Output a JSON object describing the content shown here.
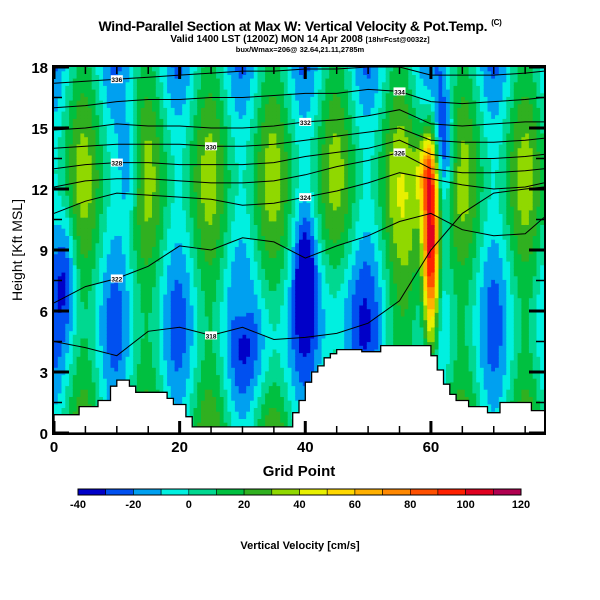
{
  "header": {
    "title": "Wind-Parallel Section at Max W: Vertical Velocity & Pot.Temp.",
    "copyright": "(C)",
    "valid_main": "Valid 1400 LST (1200Z) MON 14 Apr 2008",
    "valid_sub": "[18hrFcst@0032z]",
    "location": "bux/Wmax=206@ 32.64,21.11,2785m"
  },
  "chart_data": {
    "type": "heatmap",
    "title": "Wind-Parallel Section at Max W: Vertical Velocity & Pot.Temp.",
    "xlabel": "Grid Point",
    "ylabel": "Height [Kft MSL]",
    "xlim": [
      0,
      78
    ],
    "ylim": [
      0,
      18
    ],
    "x_ticks": [
      0,
      20,
      40,
      60
    ],
    "y_ticks": [
      0,
      3,
      6,
      9,
      12,
      15,
      18
    ],
    "x_minor_step": 5,
    "y_minor_step": 1.5,
    "colorbar": {
      "label": "Vertical Velocity [cm/s]",
      "ticks": [
        -40,
        -20,
        0,
        20,
        40,
        60,
        80,
        100,
        120
      ],
      "levels": [
        -40,
        -30,
        -20,
        -10,
        0,
        10,
        20,
        30,
        40,
        50,
        60,
        70,
        80,
        90,
        100,
        110,
        120
      ],
      "colors": [
        "#0000c8",
        "#0050f0",
        "#00a0f0",
        "#00f0e0",
        "#00d890",
        "#00c040",
        "#30b020",
        "#90d800",
        "#e8f000",
        "#ffd800",
        "#ffb000",
        "#ff8800",
        "#ff5000",
        "#ff2000",
        "#e00020",
        "#b00050"
      ]
    },
    "background_value": 5,
    "max_w": 206,
    "max_w_location": {
      "grid_point": 60,
      "height_kft": 9.1
    },
    "updraft_core": {
      "grid_point": 60,
      "height_range_kft": [
        4.5,
        14
      ],
      "peak": 110
    },
    "downdraft_features": [
      {
        "grid_point": 62,
        "height_kft": 14,
        "value": -30
      },
      {
        "grid_point": 40,
        "height_kft": 8,
        "value": -20
      },
      {
        "grid_point": 12,
        "height_kft": 13,
        "value": -15
      },
      {
        "grid_point": 2,
        "height_kft": 8,
        "value": -15
      }
    ],
    "terrain_kft": [
      0.9,
      0.9,
      0.9,
      0.9,
      1.3,
      1.3,
      1.3,
      1.6,
      1.6,
      2.3,
      2.6,
      2.6,
      2.3,
      2.0,
      2.0,
      2.0,
      2.0,
      2.0,
      1.7,
      1.4,
      1.4,
      0.8,
      0.3,
      0.3,
      0.3,
      0.3,
      0.3,
      0.3,
      0.3,
      0.3,
      0.3,
      0.3,
      0.3,
      0.3,
      0.3,
      0.3,
      0.3,
      0.3,
      1.0,
      1.6,
      2.5,
      3.0,
      3.3,
      3.7,
      3.9,
      4.1,
      4.1,
      4.1,
      4.1,
      4.0,
      4.0,
      4.0,
      4.3,
      4.3,
      4.3,
      4.3,
      4.3,
      4.3,
      4.3,
      4.3,
      3.8,
      3.1,
      2.4,
      1.9,
      1.6,
      1.6,
      1.3,
      1.3,
      1.3,
      1.0,
      1.0,
      1.5,
      1.5,
      1.5,
      1.5,
      1.5,
      1.1,
      1.1,
      1.1
    ],
    "theta_contours": [
      {
        "label": "322",
        "heights_kft": [
          6.4,
          7.2,
          7.6,
          8.2,
          9.2,
          9.0,
          9.6,
          9.4,
          8.6,
          9.2,
          9.7,
          10.4,
          10.8,
          10.0,
          9.7,
          9.8,
          10.6
        ]
      },
      {
        "label": "318",
        "heights_kft": [
          4.5,
          4.2,
          3.8,
          5.0,
          5.2,
          4.8,
          5.2,
          4.6,
          4.7,
          4.9,
          5.4,
          6.5,
          9.0,
          10.8,
          11.8,
          12.0,
          12.1
        ]
      },
      {
        "label": "324",
        "heights_kft": [
          10.8,
          11.4,
          11.8,
          11.7,
          11.6,
          11.5,
          11.2,
          11.3,
          11.6,
          11.9,
          12.3,
          12.8,
          12.5,
          12.2,
          12.0,
          12.1,
          12.3
        ]
      },
      {
        "label": "326",
        "heights_kft": [
          12.1,
          12.4,
          12.5,
          12.5,
          12.4,
          12.3,
          12.3,
          12.4,
          12.7,
          13.1,
          13.4,
          13.8,
          13.0,
          12.8,
          12.8,
          12.9,
          13.0
        ]
      },
      {
        "label": "328",
        "heights_kft": [
          13.0,
          13.2,
          13.3,
          13.3,
          13.2,
          13.2,
          13.2,
          13.3,
          13.6,
          13.8,
          14.0,
          14.4,
          13.7,
          13.5,
          13.5,
          13.6,
          13.7
        ]
      },
      {
        "label": "330",
        "heights_kft": [
          14.0,
          14.1,
          14.2,
          14.2,
          14.2,
          14.1,
          14.1,
          14.2,
          14.4,
          14.6,
          14.8,
          15.0,
          14.4,
          14.3,
          14.3,
          14.4,
          14.5
        ]
      },
      {
        "label": "332",
        "heights_kft": [
          14.9,
          15.0,
          15.2,
          15.1,
          15.1,
          15.0,
          15.0,
          15.1,
          15.3,
          15.4,
          15.6,
          15.9,
          15.2,
          15.1,
          15.2,
          15.3,
          15.3
        ]
      },
      {
        "label": "334",
        "heights_kft": [
          16.0,
          16.1,
          16.3,
          16.4,
          16.4,
          16.5,
          16.5,
          16.6,
          16.7,
          16.7,
          16.9,
          16.8,
          16.3,
          16.2,
          16.3,
          16.4,
          16.5
        ]
      },
      {
        "label": "336",
        "heights_kft": [
          17.2,
          17.3,
          17.4,
          17.5,
          17.6,
          17.7,
          17.8,
          17.8,
          17.9,
          17.9,
          18.0,
          18.0,
          17.6,
          17.6,
          17.6,
          17.7,
          17.8
        ]
      }
    ],
    "contour_x_gridpoints": [
      0,
      5,
      10,
      15,
      20,
      25,
      30,
      35,
      40,
      45,
      50,
      55,
      60,
      65,
      70,
      75,
      78
    ]
  }
}
